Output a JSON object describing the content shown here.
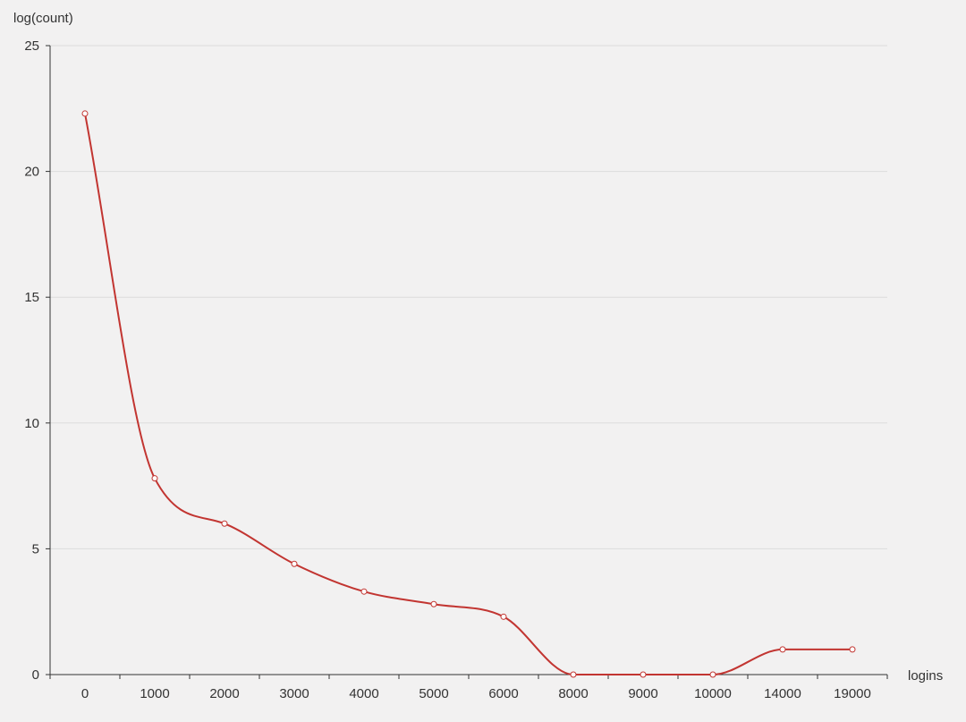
{
  "chart_data": {
    "type": "line",
    "smooth": true,
    "xlabel": "logins",
    "ylabel": "log(count)",
    "categories": [
      "0",
      "1000",
      "2000",
      "3000",
      "4000",
      "5000",
      "6000",
      "8000",
      "9000",
      "10000",
      "14000",
      "19000"
    ],
    "series": [
      {
        "values": [
          22.3,
          7.8,
          6.0,
          4.4,
          3.3,
          2.8,
          2.3,
          0,
          0,
          0,
          1.0,
          1.0
        ]
      }
    ],
    "ylim": [
      0,
      25
    ],
    "yticks": [
      0,
      5,
      10,
      15,
      20,
      25
    ],
    "grid": "horizontal",
    "legend": "none",
    "colors": {
      "line": "#c23531",
      "marker_fill": "#ffffff",
      "grid": "#dcdcdc",
      "axis": "#333333",
      "background": "#f2f1f1"
    }
  }
}
